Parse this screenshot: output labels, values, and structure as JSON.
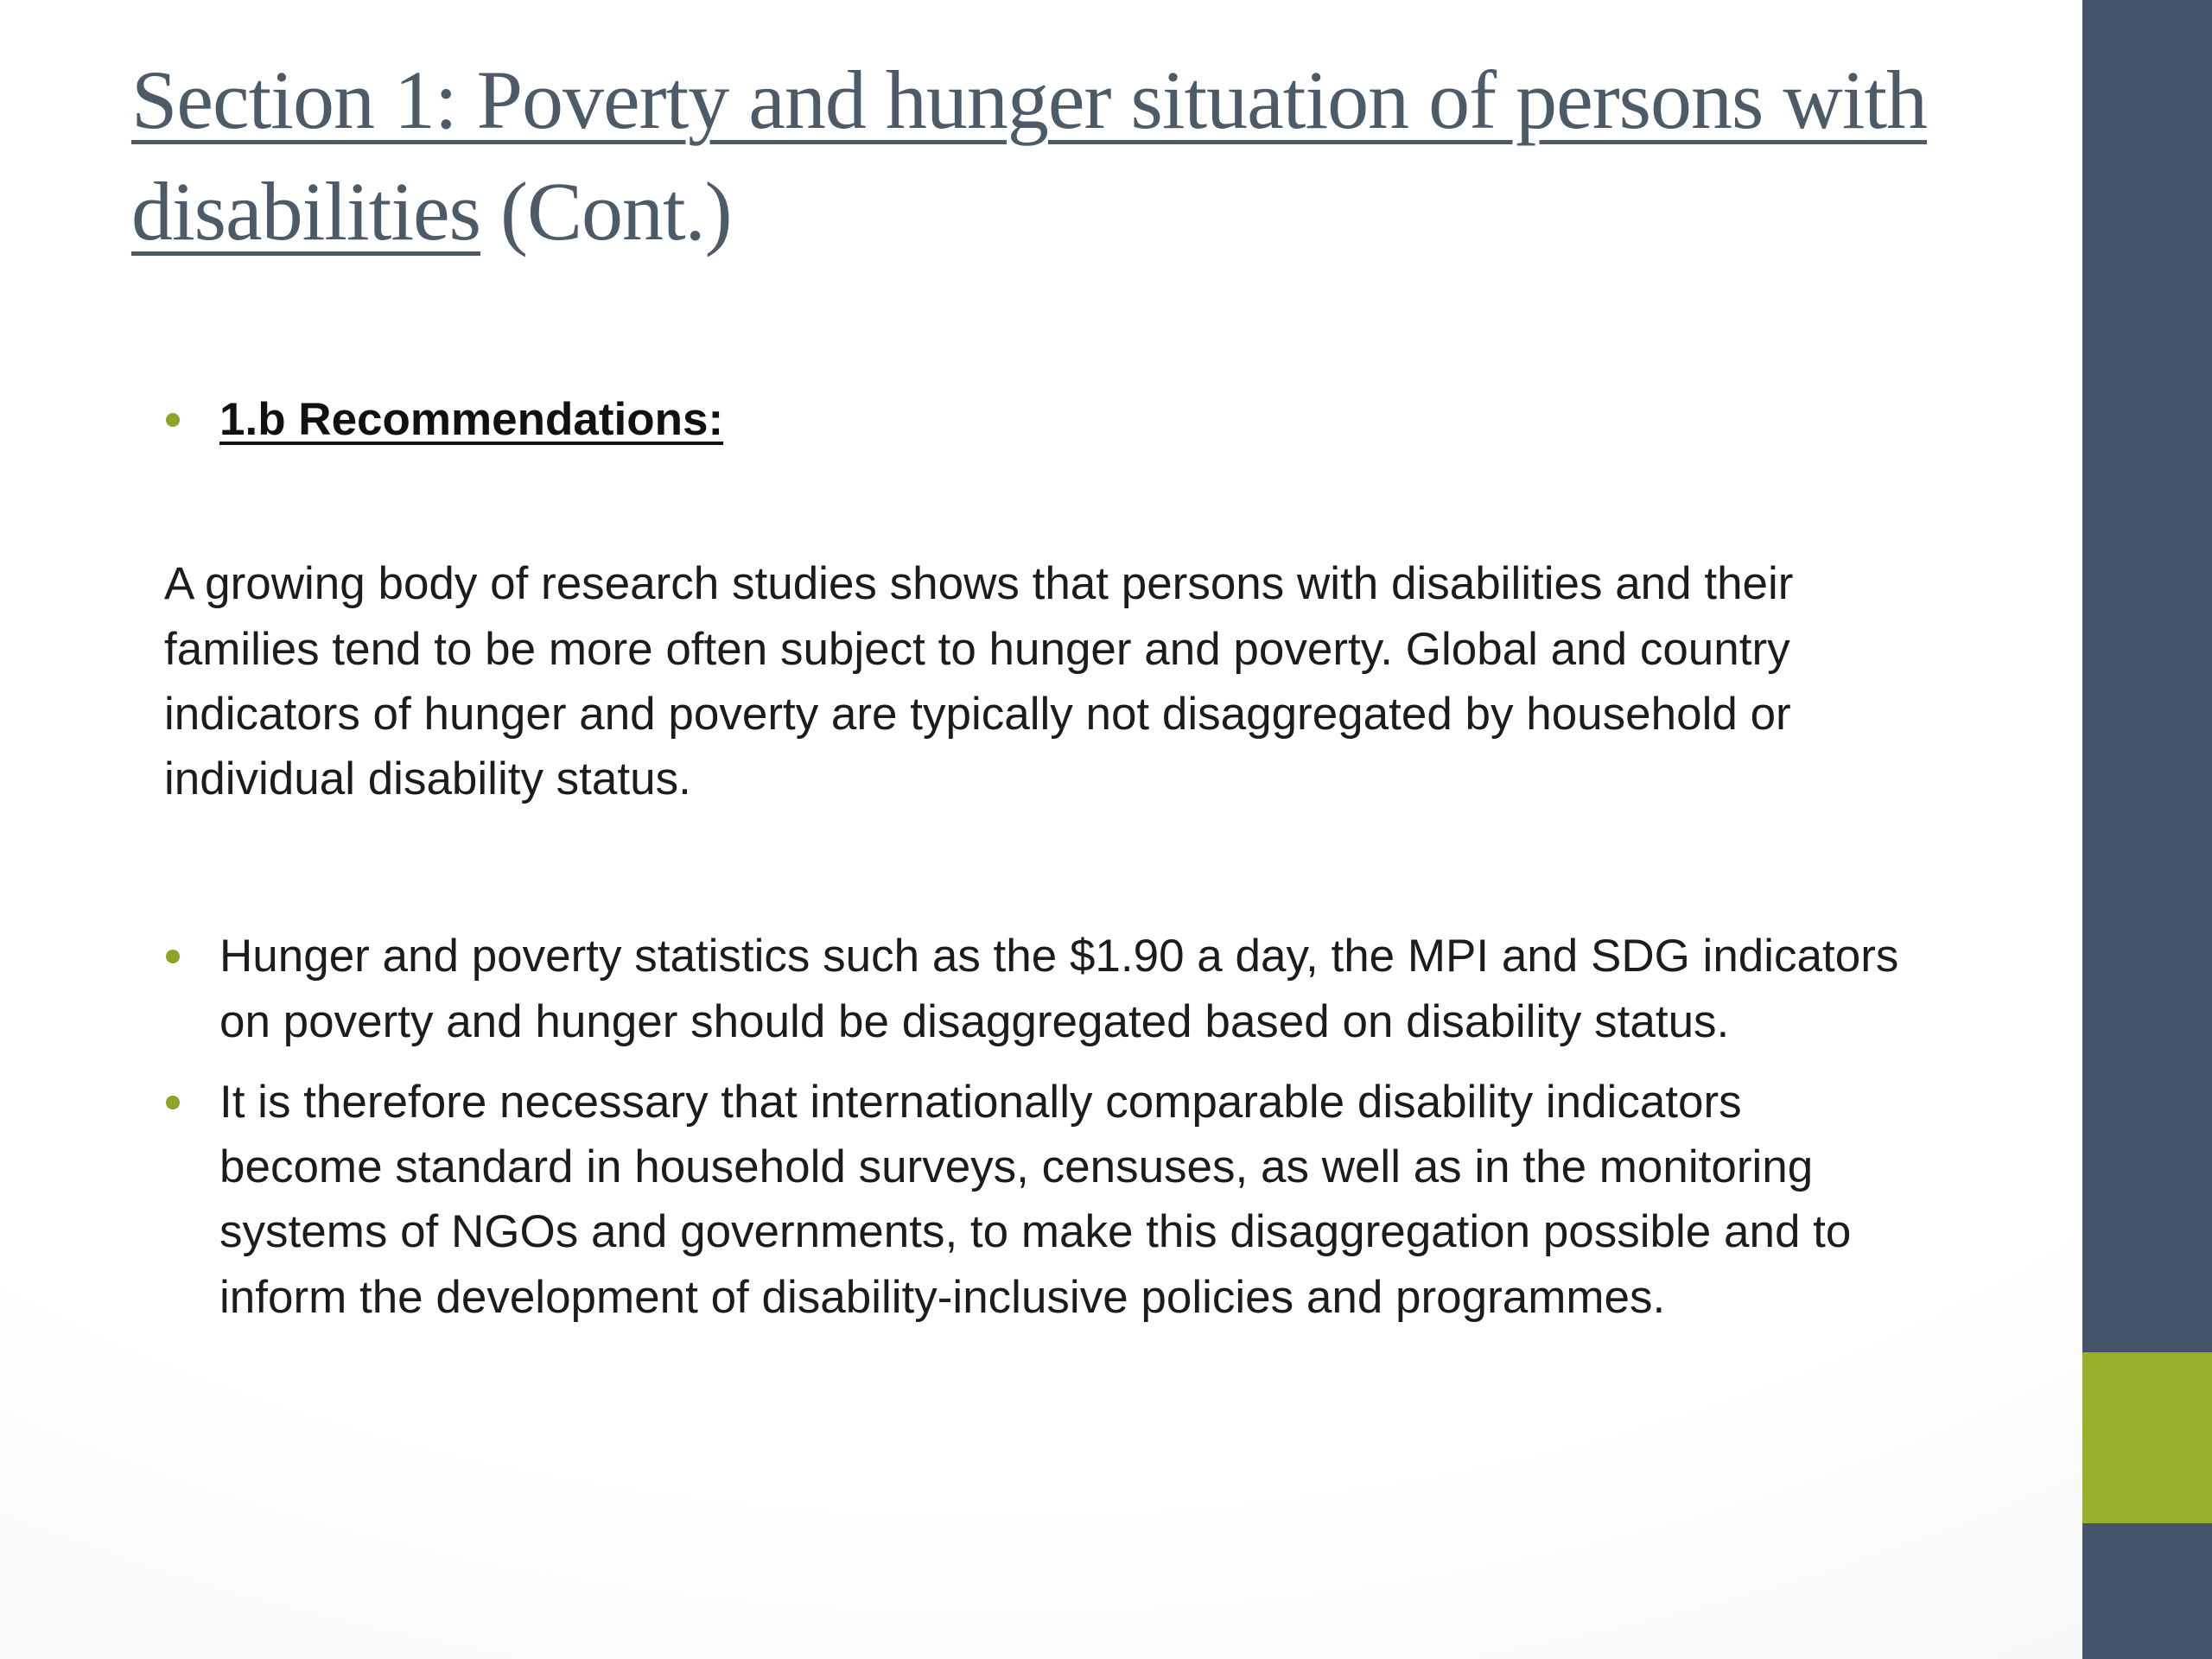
{
  "slide": {
    "title": {
      "underlined": "Section 1: Poverty and hunger situation of persons with disabilities",
      "suffix": " (Cont.)"
    },
    "heading": "1.b Recommendations:",
    "paragraph": "A growing body of research studies shows that persons with disabilities and their families tend to be more often subject to hunger and poverty. Global and country indicators of hunger and poverty are typically not disaggregated by household or individual disability status.",
    "bullets": [
      "Hunger and poverty statistics such as the $1.90 a day, the MPI and SDG indicators on poverty and hunger should be disaggregated based on disability status.",
      "It is therefore necessary that internationally comparable disability indicators become standard in household surveys, censuses, as well as in the monitoring systems of NGOs and governments, to make this disaggregation possible and to inform the development of disability-inclusive policies and programmes."
    ],
    "colors": {
      "title": "#4d5a68",
      "body": "#1c1c1c",
      "bullet": "#8ca428",
      "sidebar": "#44536a",
      "accent_block": "#96b02c"
    }
  }
}
